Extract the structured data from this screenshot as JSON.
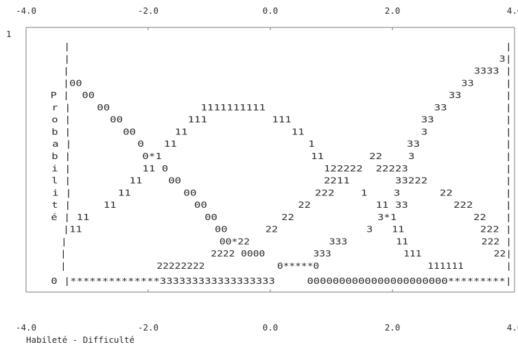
{
  "chart_data": {
    "type": "line",
    "title": "",
    "xlabel": "Habileté - Difficulté",
    "ylabel": "Probabilité",
    "x_ticks": [
      "-4.0",
      "-2.0",
      "0.0",
      "2.0",
      "4.0"
    ],
    "y_ticks": [
      "1",
      "0"
    ],
    "xlim": [
      -4.0,
      4.0
    ],
    "ylim": [
      0,
      1
    ],
    "grid": false,
    "text_rows": [
      "         |                                                                    |",
      "         |                                                                   3|",
      "         |                                                                3333 |",
      "         |00                                                            33     |",
      "       P |  00                                                        33       |",
      "       r |    00              1111111111                          33         |",
      "       o |      00          111          111                    33           |",
      "       b |        00      11                11                  3            |",
      "       a |          0   11                    1              33             |",
      "       b |           0*1                       11       22    3              |",
      "       i |           11 0                        122222  22223               |",
      "       l |         11    00                      2211       33222            |",
      "       i |       11        00                  222    1    3      22        |",
      "       t |     11            00              22          11 33       222     |",
      "       é | 11                  00          22             3*1            22   |",
      "         |11                     00      22              3   11            222 |",
      "         |                         00*22             333        11            222 |",
      "         |                        2222 0000        333            111            22|",
      "         |               22222222            0*****0                  111111       |"
    ],
    "baseline_row": "       0 |**************333333333333333333     0000000000000000000000*********|",
    "top_row": "       1 |                                                                    |",
    "series": [
      {
        "symbol": "0",
        "x": [
          -4.0,
          -3.0,
          -2.0,
          -1.0,
          0.0,
          1.0,
          2.0,
          3.0,
          4.0
        ],
        "values": [
          0.86,
          0.63,
          0.34,
          0.12,
          0.02,
          0.0,
          0.0,
          0.0,
          0.0
        ]
      },
      {
        "symbol": "1",
        "x": [
          -4.0,
          -3.0,
          -2.0,
          -1.0,
          0.0,
          1.0,
          2.0,
          3.0,
          4.0
        ],
        "values": [
          0.13,
          0.36,
          0.6,
          0.71,
          0.6,
          0.36,
          0.13,
          0.04,
          0.01
        ]
      },
      {
        "symbol": "2",
        "x": [
          -4.0,
          -3.0,
          -2.0,
          -1.0,
          0.0,
          1.0,
          2.0,
          3.0,
          4.0
        ],
        "values": [
          0.01,
          0.01,
          0.05,
          0.16,
          0.35,
          0.5,
          0.48,
          0.24,
          0.07
        ]
      },
      {
        "symbol": "3",
        "x": [
          -4.0,
          -3.0,
          -2.0,
          -1.0,
          0.0,
          1.0,
          2.0,
          3.0,
          4.0
        ],
        "values": [
          0.0,
          0.0,
          0.0,
          0.0,
          0.03,
          0.14,
          0.41,
          0.7,
          0.92
        ]
      }
    ]
  }
}
